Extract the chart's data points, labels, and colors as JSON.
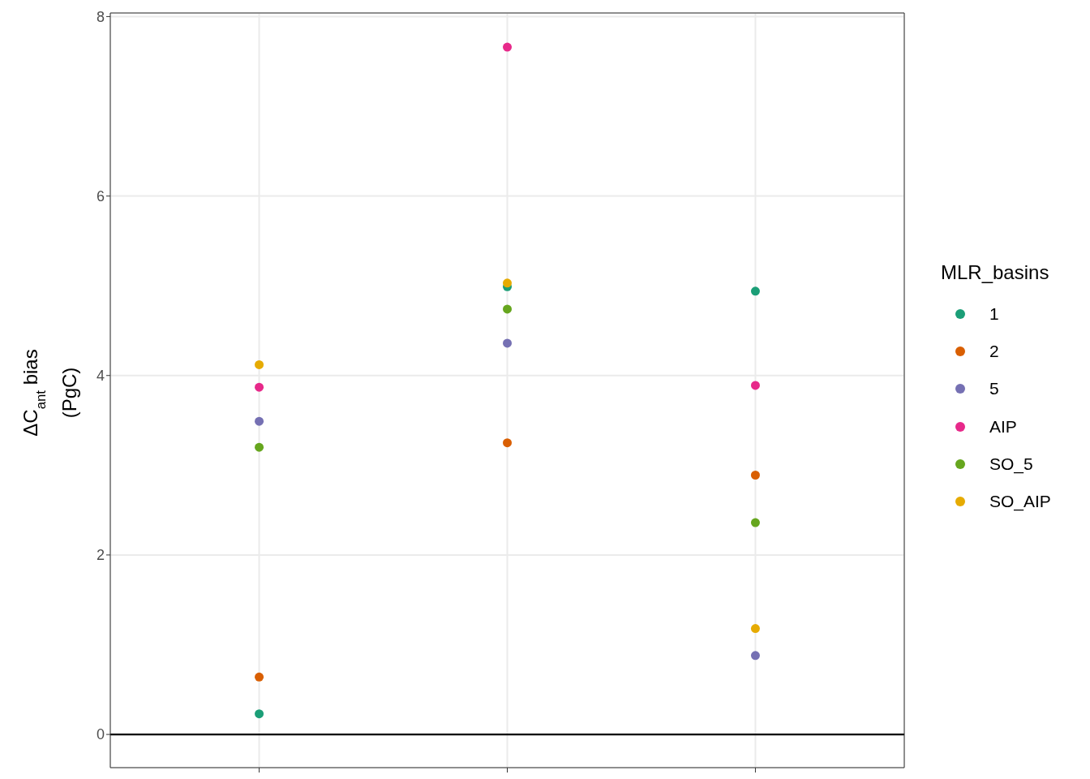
{
  "chart_data": {
    "type": "scatter",
    "ylabel": "ΔC$_{ant}$ bias (PgC)",
    "legend_title": "MLR_basins",
    "categories": [
      null,
      null,
      null
    ],
    "series": [
      {
        "name": "1",
        "color": "#1b9e77",
        "values": [
          0.23,
          4.99,
          4.94
        ]
      },
      {
        "name": "2",
        "color": "#d95f02",
        "values": [
          0.64,
          3.25,
          2.89
        ]
      },
      {
        "name": "5",
        "color": "#7570b3",
        "values": [
          3.49,
          4.36,
          0.88
        ]
      },
      {
        "name": "AIP",
        "color": "#e7298a",
        "values": [
          3.87,
          7.66,
          3.89
        ]
      },
      {
        "name": "SO_5",
        "color": "#66a61e",
        "values": [
          3.2,
          4.74,
          2.36
        ]
      },
      {
        "name": "SO_AIP",
        "color": "#e6ab02",
        "values": [
          4.12,
          5.03,
          1.18
        ]
      }
    ],
    "ylim": [
      -0.37,
      8.04
    ],
    "yticks": [
      0,
      2,
      4,
      6,
      8
    ],
    "grid": true,
    "legend": "right",
    "marker": "circle",
    "ref_lines": [
      {
        "axis": "y",
        "value": 0,
        "color": "#000000"
      }
    ]
  }
}
